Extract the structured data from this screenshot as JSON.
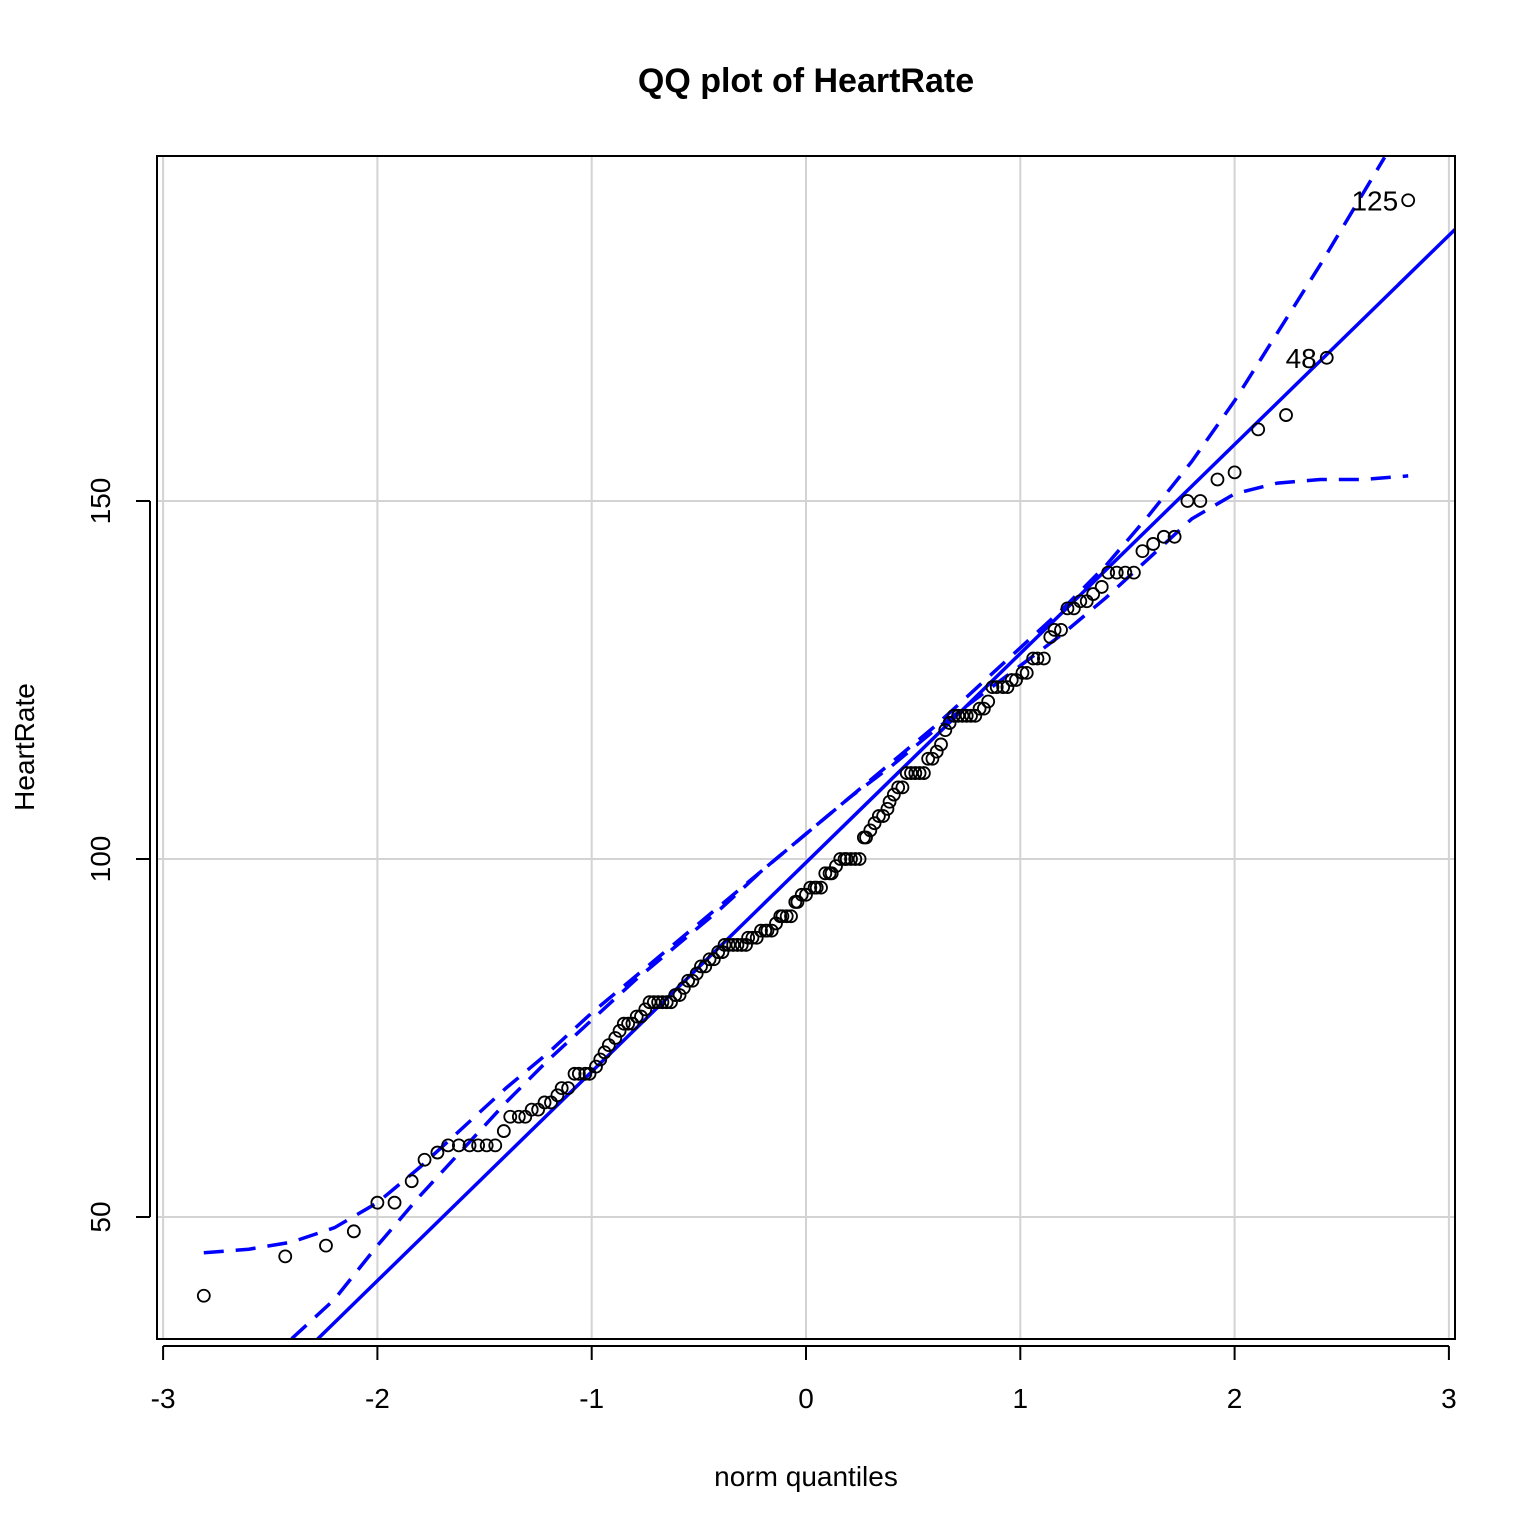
{
  "chart_data": {
    "type": "scatter",
    "title": "QQ plot of HeartRate",
    "xlabel": "norm quantiles",
    "ylabel": "HeartRate",
    "xlim": [
      -3,
      3
    ],
    "ylim": [
      33,
      198
    ],
    "xticks": [
      -3,
      -2,
      -1,
      0,
      1,
      2,
      3
    ],
    "xtick_labels": [
      "-3",
      "-2",
      "-1",
      "0",
      "1",
      "2",
      "3"
    ],
    "yticks": [
      50,
      100,
      150
    ],
    "ytick_labels": [
      "50",
      "100",
      "150"
    ],
    "grid": true,
    "colors": {
      "points": "#000000",
      "reference_line": "#0000ff",
      "envelope": "#0000ff",
      "grid": "#d3d3d3"
    },
    "reference_line": {
      "intercept": 99.5,
      "slope": 29.2
    },
    "confidence_envelope": {
      "upper": [
        [
          -2.81,
          45
        ],
        [
          -2.6,
          45.5
        ],
        [
          -2.4,
          46.5
        ],
        [
          -2.2,
          48.5
        ],
        [
          -2.0,
          52
        ],
        [
          -1.8,
          57
        ],
        [
          -1.6,
          62.5
        ],
        [
          -1.4,
          68
        ],
        [
          -1.2,
          73
        ],
        [
          -1.0,
          78.5
        ],
        [
          -0.8,
          83.5
        ],
        [
          -0.6,
          88.5
        ],
        [
          -0.4,
          93.5
        ],
        [
          -0.2,
          98.5
        ],
        [
          0.0,
          103.5
        ],
        [
          0.2,
          108.5
        ],
        [
          0.4,
          113.5
        ],
        [
          0.6,
          118.5
        ],
        [
          0.8,
          124
        ],
        [
          1.0,
          129.5
        ],
        [
          1.2,
          135
        ],
        [
          1.4,
          141
        ],
        [
          1.6,
          148
        ],
        [
          1.8,
          155.5
        ],
        [
          2.0,
          164
        ],
        [
          2.2,
          173.5
        ],
        [
          2.4,
          183
        ],
        [
          2.6,
          193
        ],
        [
          2.7,
          198
        ]
      ],
      "lower": [
        [
          -2.4,
          33
        ],
        [
          -2.2,
          38.5
        ],
        [
          -2.0,
          46
        ],
        [
          -1.8,
          53
        ],
        [
          -1.6,
          59.5
        ],
        [
          -1.4,
          66
        ],
        [
          -1.2,
          72
        ],
        [
          -1.0,
          77.5
        ],
        [
          -0.8,
          83
        ],
        [
          -0.6,
          88
        ],
        [
          -0.4,
          93
        ],
        [
          -0.2,
          98.5
        ],
        [
          0.0,
          103.5
        ],
        [
          0.2,
          108.5
        ],
        [
          0.4,
          113
        ],
        [
          0.6,
          118
        ],
        [
          0.8,
          122.5
        ],
        [
          1.0,
          127
        ],
        [
          1.2,
          131.5
        ],
        [
          1.4,
          136.5
        ],
        [
          1.6,
          142
        ],
        [
          1.8,
          147.5
        ],
        [
          2.0,
          151
        ],
        [
          2.2,
          152.5
        ],
        [
          2.4,
          153
        ],
        [
          2.6,
          153
        ],
        [
          2.81,
          153.5
        ]
      ]
    },
    "labeled_points": [
      {
        "id": "125",
        "x": 2.81,
        "y": 192
      },
      {
        "id": "48",
        "x": 2.43,
        "y": 170
      }
    ],
    "points": [
      [
        -2.81,
        39
      ],
      [
        -2.43,
        44.5
      ],
      [
        -2.24,
        46
      ],
      [
        -2.11,
        48
      ],
      [
        -2.0,
        52
      ],
      [
        -1.92,
        52
      ],
      [
        -1.84,
        55
      ],
      [
        -1.78,
        58
      ],
      [
        -1.72,
        59
      ],
      [
        -1.67,
        60
      ],
      [
        -1.62,
        60
      ],
      [
        -1.57,
        60
      ],
      [
        -1.53,
        60
      ],
      [
        -1.49,
        60
      ],
      [
        -1.45,
        60
      ],
      [
        -1.41,
        62
      ],
      [
        -1.38,
        64
      ],
      [
        -1.34,
        64
      ],
      [
        -1.31,
        64
      ],
      [
        -1.28,
        65
      ],
      [
        -1.25,
        65
      ],
      [
        -1.22,
        66
      ],
      [
        -1.19,
        66
      ],
      [
        -1.16,
        67
      ],
      [
        -1.14,
        68
      ],
      [
        -1.11,
        68
      ],
      [
        -1.08,
        70
      ],
      [
        -1.06,
        70
      ],
      [
        -1.03,
        70
      ],
      [
        -1.01,
        70
      ],
      [
        -0.98,
        71
      ],
      [
        -0.96,
        72
      ],
      [
        -0.94,
        73
      ],
      [
        -0.92,
        74
      ],
      [
        -0.89,
        75
      ],
      [
        -0.87,
        76
      ],
      [
        -0.85,
        77
      ],
      [
        -0.83,
        77
      ],
      [
        -0.81,
        77
      ],
      [
        -0.79,
        78
      ],
      [
        -0.77,
        78
      ],
      [
        -0.75,
        79
      ],
      [
        -0.73,
        80
      ],
      [
        -0.71,
        80
      ],
      [
        -0.69,
        80
      ],
      [
        -0.67,
        80
      ],
      [
        -0.65,
        80
      ],
      [
        -0.63,
        80
      ],
      [
        -0.61,
        81
      ],
      [
        -0.59,
        81
      ],
      [
        -0.57,
        82
      ],
      [
        -0.55,
        83
      ],
      [
        -0.53,
        83
      ],
      [
        -0.51,
        84
      ],
      [
        -0.49,
        85
      ],
      [
        -0.47,
        85
      ],
      [
        -0.45,
        86
      ],
      [
        -0.43,
        86
      ],
      [
        -0.41,
        87
      ],
      [
        -0.39,
        87
      ],
      [
        -0.38,
        88
      ],
      [
        -0.36,
        88
      ],
      [
        -0.34,
        88
      ],
      [
        -0.32,
        88
      ],
      [
        -0.3,
        88
      ],
      [
        -0.28,
        88
      ],
      [
        -0.27,
        89
      ],
      [
        -0.25,
        89
      ],
      [
        -0.23,
        89
      ],
      [
        -0.21,
        90
      ],
      [
        -0.19,
        90
      ],
      [
        -0.18,
        90
      ],
      [
        -0.16,
        90
      ],
      [
        -0.14,
        91
      ],
      [
        -0.12,
        92
      ],
      [
        -0.11,
        92
      ],
      [
        -0.09,
        92
      ],
      [
        -0.07,
        92
      ],
      [
        -0.05,
        94
      ],
      [
        -0.04,
        94
      ],
      [
        -0.02,
        95
      ],
      [
        0.0,
        95
      ],
      [
        0.02,
        96
      ],
      [
        0.04,
        96
      ],
      [
        0.05,
        96
      ],
      [
        0.07,
        96
      ],
      [
        0.09,
        98
      ],
      [
        0.11,
        98
      ],
      [
        0.12,
        98
      ],
      [
        0.14,
        99
      ],
      [
        0.16,
        100
      ],
      [
        0.18,
        100
      ],
      [
        0.19,
        100
      ],
      [
        0.21,
        100
      ],
      [
        0.23,
        100
      ],
      [
        0.25,
        100
      ],
      [
        0.27,
        103
      ],
      [
        0.28,
        103
      ],
      [
        0.3,
        104
      ],
      [
        0.32,
        105
      ],
      [
        0.34,
        106
      ],
      [
        0.36,
        106
      ],
      [
        0.38,
        107
      ],
      [
        0.39,
        108
      ],
      [
        0.41,
        109
      ],
      [
        0.43,
        110
      ],
      [
        0.45,
        110
      ],
      [
        0.47,
        112
      ],
      [
        0.49,
        112
      ],
      [
        0.51,
        112
      ],
      [
        0.53,
        112
      ],
      [
        0.55,
        112
      ],
      [
        0.57,
        114
      ],
      [
        0.59,
        114
      ],
      [
        0.61,
        115
      ],
      [
        0.63,
        116
      ],
      [
        0.65,
        118
      ],
      [
        0.67,
        119
      ],
      [
        0.69,
        120
      ],
      [
        0.71,
        120
      ],
      [
        0.73,
        120
      ],
      [
        0.75,
        120
      ],
      [
        0.77,
        120
      ],
      [
        0.79,
        120
      ],
      [
        0.81,
        121
      ],
      [
        0.83,
        121
      ],
      [
        0.85,
        122
      ],
      [
        0.87,
        124
      ],
      [
        0.89,
        124
      ],
      [
        0.92,
        124
      ],
      [
        0.94,
        124
      ],
      [
        0.96,
        125
      ],
      [
        0.98,
        125
      ],
      [
        1.01,
        126
      ],
      [
        1.03,
        126
      ],
      [
        1.06,
        128
      ],
      [
        1.08,
        128
      ],
      [
        1.11,
        128
      ],
      [
        1.14,
        131
      ],
      [
        1.16,
        132
      ],
      [
        1.19,
        132
      ],
      [
        1.22,
        135
      ],
      [
        1.25,
        135
      ],
      [
        1.28,
        136
      ],
      [
        1.31,
        136
      ],
      [
        1.34,
        137
      ],
      [
        1.38,
        138
      ],
      [
        1.41,
        140
      ],
      [
        1.45,
        140
      ],
      [
        1.49,
        140
      ],
      [
        1.53,
        140
      ],
      [
        1.57,
        143
      ],
      [
        1.62,
        144
      ],
      [
        1.67,
        145
      ],
      [
        1.72,
        145
      ],
      [
        1.78,
        150
      ],
      [
        1.84,
        150
      ],
      [
        1.92,
        153
      ],
      [
        2.0,
        154
      ],
      [
        2.11,
        160
      ],
      [
        2.24,
        162
      ],
      [
        2.43,
        170
      ],
      [
        2.81,
        192
      ]
    ]
  }
}
